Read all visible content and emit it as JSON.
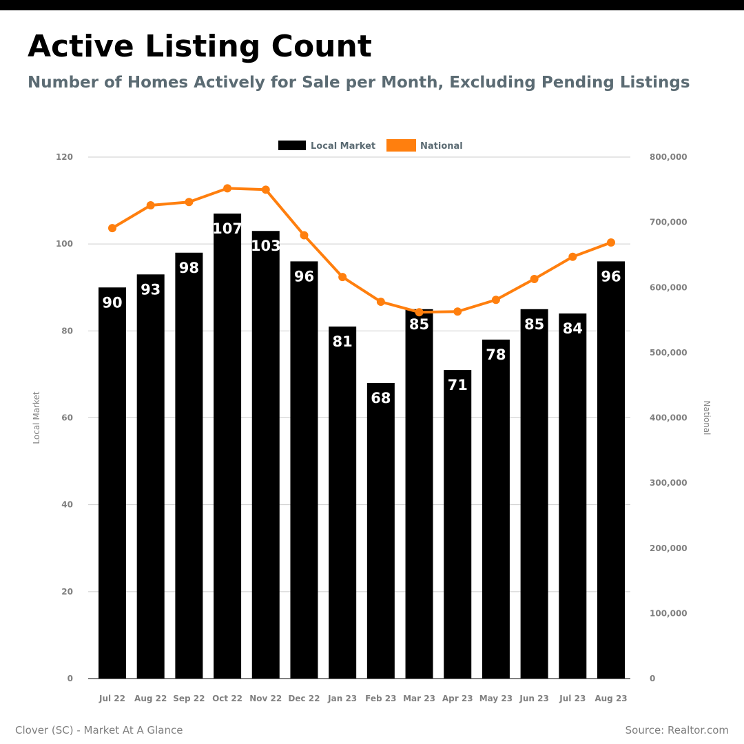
{
  "title": "Active Listing Count",
  "subtitle": "Number of Homes Actively for Sale per Month, Excluding Pending Listings",
  "footer": {
    "left": "Clover (SC) - Market At A Glance",
    "right": "Source: Realtor.com"
  },
  "chart_data": {
    "type": "bar",
    "categories": [
      "Jul 22",
      "Aug 22",
      "Sep 22",
      "Oct 22",
      "Nov 22",
      "Dec 22",
      "Jan 23",
      "Feb 23",
      "Mar 23",
      "Apr 23",
      "May 23",
      "Jun 23",
      "Jul 23",
      "Aug 23"
    ],
    "series": [
      {
        "name": "Local Market",
        "type": "bar",
        "axis": "left",
        "color": "#000000",
        "values": [
          90,
          93,
          98,
          107,
          103,
          96,
          81,
          68,
          85,
          71,
          78,
          85,
          84,
          96
        ],
        "labels": [
          "90",
          "93",
          "98",
          "107",
          "103",
          "96",
          "81",
          "68",
          "85",
          "71",
          "78",
          "85",
          "84",
          "96"
        ]
      },
      {
        "name": "National",
        "type": "line",
        "axis": "right",
        "color": "#ff7f0e",
        "values": [
          691000,
          726000,
          731000,
          752000,
          750000,
          680000,
          616000,
          578000,
          562000,
          563000,
          581000,
          613000,
          647000,
          669000
        ]
      }
    ],
    "y_left": {
      "label": "Local Market",
      "ylim": [
        0,
        120
      ],
      "ticks": [
        0,
        20,
        40,
        60,
        80,
        100,
        120
      ],
      "tick_labels": [
        "0",
        "20",
        "40",
        "60",
        "80",
        "100",
        "120"
      ]
    },
    "y_right": {
      "label": "National",
      "ylim": [
        0,
        800000
      ],
      "ticks": [
        0,
        100000,
        200000,
        300000,
        400000,
        500000,
        600000,
        700000,
        800000
      ],
      "tick_labels": [
        "0",
        "100,000",
        "200,000",
        "300,000",
        "400,000",
        "500,000",
        "600,000",
        "700,000",
        "800,000"
      ]
    },
    "grid": true,
    "legend": "top-center"
  }
}
